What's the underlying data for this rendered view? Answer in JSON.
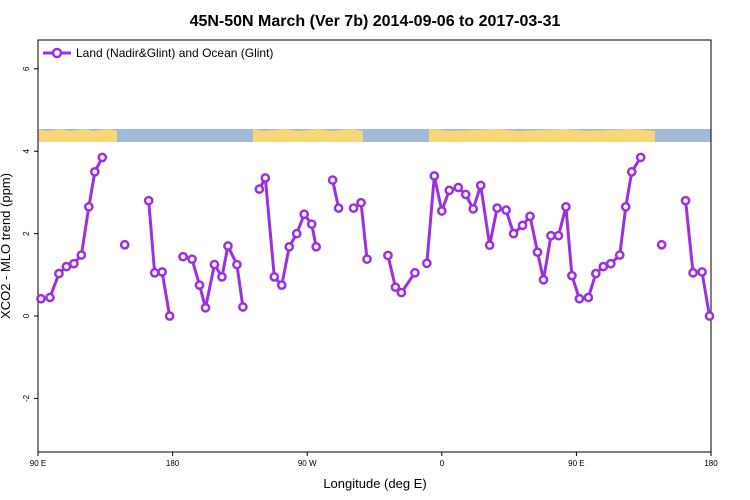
{
  "chart_data": {
    "type": "line",
    "title": "45N-50N March (Ver 7b)   2014-09-06 to 2017-03-31",
    "xlabel": "Longitude (deg E)",
    "ylabel": "XCO2 - MLO trend (ppm)",
    "xlim": [
      90,
      540
    ],
    "ylim": [
      -3.3,
      6.7
    ],
    "x_ticks": [
      {
        "value": 90,
        "label": "90 E"
      },
      {
        "value": 180,
        "label": "180"
      },
      {
        "value": 270,
        "label": "90 W"
      },
      {
        "value": 360,
        "label": "0"
      },
      {
        "value": 450,
        "label": "90 E"
      },
      {
        "value": 540,
        "label": "180"
      }
    ],
    "y_ticks": [
      {
        "value": -2,
        "label": "-2"
      },
      {
        "value": 0,
        "label": "0"
      },
      {
        "value": 2,
        "label": "2"
      },
      {
        "value": 4,
        "label": "4"
      },
      {
        "value": 6,
        "label": "6"
      }
    ],
    "legend_position": "top-left",
    "series": [
      {
        "name": "Land (Nadir&Glint) and Ocean (Glint)",
        "color": "#9b30e0",
        "segments": [
          [
            [
              92,
              0.42
            ],
            [
              98,
              0.45
            ],
            [
              104,
              1.03
            ],
            [
              109,
              1.2
            ],
            [
              114,
              1.27
            ],
            [
              119,
              1.48
            ],
            [
              124,
              2.65
            ],
            [
              128,
              3.5
            ],
            [
              133,
              3.85
            ]
          ],
          [
            [
              148,
              1.73
            ]
          ],
          [
            [
              164,
              2.8
            ],
            [
              168,
              1.05
            ],
            [
              173,
              1.07
            ],
            [
              178,
              0.0
            ]
          ],
          [
            [
              187,
              1.44
            ],
            [
              193,
              1.38
            ],
            [
              198,
              0.75
            ],
            [
              202,
              0.2
            ],
            [
              208,
              1.25
            ],
            [
              213,
              0.95
            ],
            [
              217,
              1.7
            ],
            [
              223,
              1.25
            ],
            [
              227,
              0.22
            ]
          ],
          [
            [
              238,
              3.08
            ],
            [
              242,
              3.35
            ],
            [
              248,
              0.95
            ],
            [
              253,
              0.75
            ],
            [
              258,
              1.68
            ],
            [
              263,
              2.0
            ],
            [
              268,
              2.47
            ],
            [
              273,
              2.23
            ],
            [
              276,
              1.68
            ]
          ],
          [
            [
              287,
              3.3
            ],
            [
              291,
              2.62
            ]
          ],
          [
            [
              301,
              2.62
            ],
            [
              306,
              2.75
            ],
            [
              310,
              1.38
            ]
          ],
          [
            [
              324,
              1.47
            ],
            [
              329,
              0.7
            ],
            [
              333,
              0.57
            ],
            [
              342,
              1.05
            ]
          ],
          [
            [
              350,
              1.28
            ],
            [
              355,
              3.4
            ],
            [
              360,
              2.55
            ],
            [
              365,
              3.05
            ],
            [
              371,
              3.12
            ],
            [
              376,
              2.95
            ],
            [
              381,
              2.6
            ],
            [
              386,
              3.17
            ],
            [
              392,
              1.72
            ],
            [
              397,
              2.62
            ],
            [
              403,
              2.57
            ],
            [
              408,
              2.0
            ],
            [
              414,
              2.2
            ],
            [
              419,
              2.42
            ],
            [
              424,
              1.55
            ],
            [
              428,
              0.88
            ],
            [
              433,
              1.95
            ],
            [
              438,
              1.95
            ],
            [
              443,
              2.65
            ],
            [
              447,
              0.98
            ],
            [
              452,
              0.42
            ],
            [
              458,
              0.45
            ],
            [
              463,
              1.03
            ],
            [
              468,
              1.2
            ],
            [
              473,
              1.27
            ],
            [
              479,
              1.48
            ],
            [
              483,
              2.65
            ],
            [
              487,
              3.5
            ],
            [
              493,
              3.85
            ]
          ],
          [
            [
              507,
              1.73
            ]
          ],
          [
            [
              523,
              2.8
            ],
            [
              528,
              1.05
            ],
            [
              534,
              1.07
            ],
            [
              539,
              0.0
            ]
          ]
        ]
      }
    ]
  }
}
